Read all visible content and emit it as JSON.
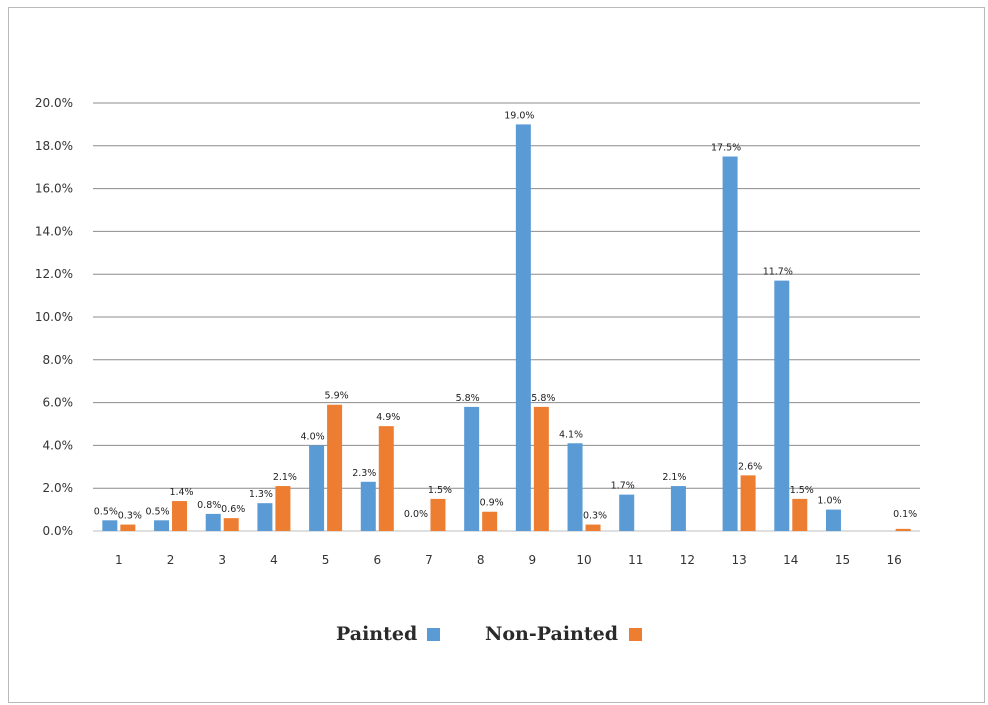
{
  "chart_data": {
    "type": "bar",
    "categories": [
      "1",
      "2",
      "3",
      "4",
      "5",
      "6",
      "7",
      "8",
      "9",
      "10",
      "11",
      "12",
      "13",
      "14",
      "15",
      "16"
    ],
    "series": [
      {
        "name": "Painted",
        "color": "#5B9BD5",
        "values": [
          0.5,
          0.5,
          0.8,
          1.3,
          4.0,
          2.3,
          0.0,
          5.8,
          19.0,
          4.1,
          1.7,
          2.1,
          17.5,
          11.7,
          1.0,
          null
        ],
        "labels": [
          "0.5%",
          "0.5%",
          "0.8%",
          "1.3%",
          "4.0%",
          "2.3%",
          "0.0%",
          "5.8%",
          "19.0%",
          "4.1%",
          "1.7%",
          "2.1%",
          "17.5%",
          "11.7%",
          "1.0%",
          ""
        ]
      },
      {
        "name": "Non-Painted",
        "color": "#ED7D31",
        "values": [
          0.3,
          1.4,
          0.6,
          2.1,
          5.9,
          4.9,
          1.5,
          0.9,
          5.8,
          0.3,
          null,
          null,
          2.6,
          1.5,
          null,
          0.1
        ],
        "labels": [
          "0.3%",
          "1.4%",
          "0.6%",
          "2.1%",
          "5.9%",
          "4.9%",
          "1.5%",
          "0.9%",
          "5.8%",
          "0.3%",
          "",
          "",
          "2.6%",
          "1.5%",
          "",
          "0.1%"
        ]
      }
    ],
    "y_ticks": [
      "0.0%",
      "2.0%",
      "4.0%",
      "6.0%",
      "8.0%",
      "10.0%",
      "12.0%",
      "14.0%",
      "16.0%",
      "18.0%",
      "20.0%"
    ],
    "ylim": [
      0,
      20
    ],
    "grid": true,
    "legend_position": "bottom"
  }
}
